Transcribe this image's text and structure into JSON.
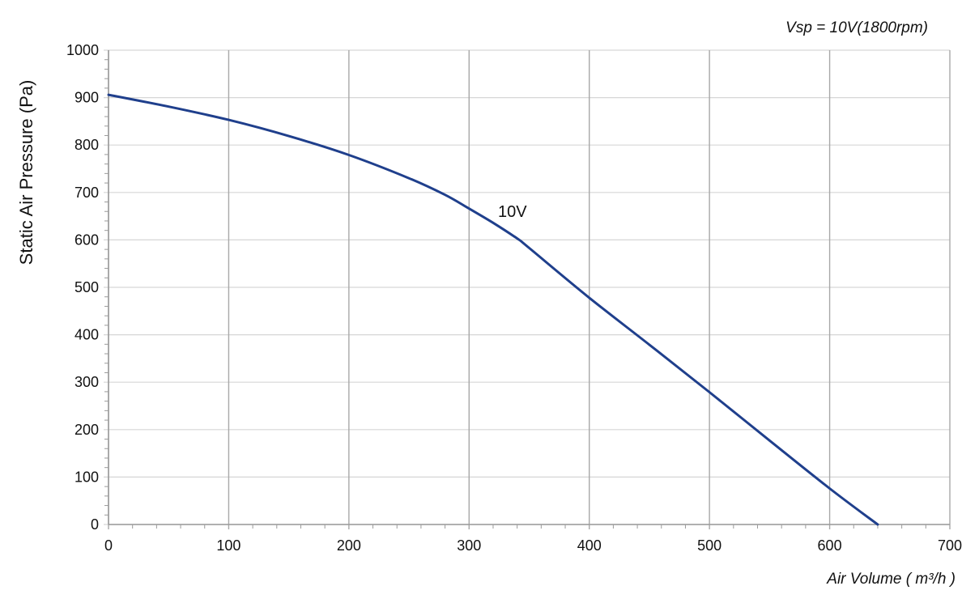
{
  "chart_data": {
    "type": "line",
    "subtitle": "Vsp = 10V(1800rpm)",
    "xlabel": "Air Volume ( m³/h )",
    "ylabel": "Static Air Pressure  (Pa)",
    "xlim": [
      0,
      700
    ],
    "ylim": [
      0,
      1000
    ],
    "x_ticks": [
      "0",
      "100",
      "200",
      "300",
      "400",
      "500",
      "600",
      "700"
    ],
    "y_ticks": [
      "0",
      "100",
      "200",
      "300",
      "400",
      "500",
      "600",
      "700",
      "800",
      "900",
      "1000"
    ],
    "grid": true,
    "series": [
      {
        "name": "10V",
        "color": "#1f3f8c",
        "x": [
          0,
          50,
          100,
          150,
          200,
          250,
          280,
          300,
          320,
          340,
          350,
          400,
          450,
          500,
          550,
          600,
          640
        ],
        "y": [
          906,
          881,
          853,
          819,
          779,
          730,
          695,
          666,
          636,
          603,
          583,
          478,
          379,
          279,
          177,
          76,
          0
        ]
      }
    ]
  }
}
